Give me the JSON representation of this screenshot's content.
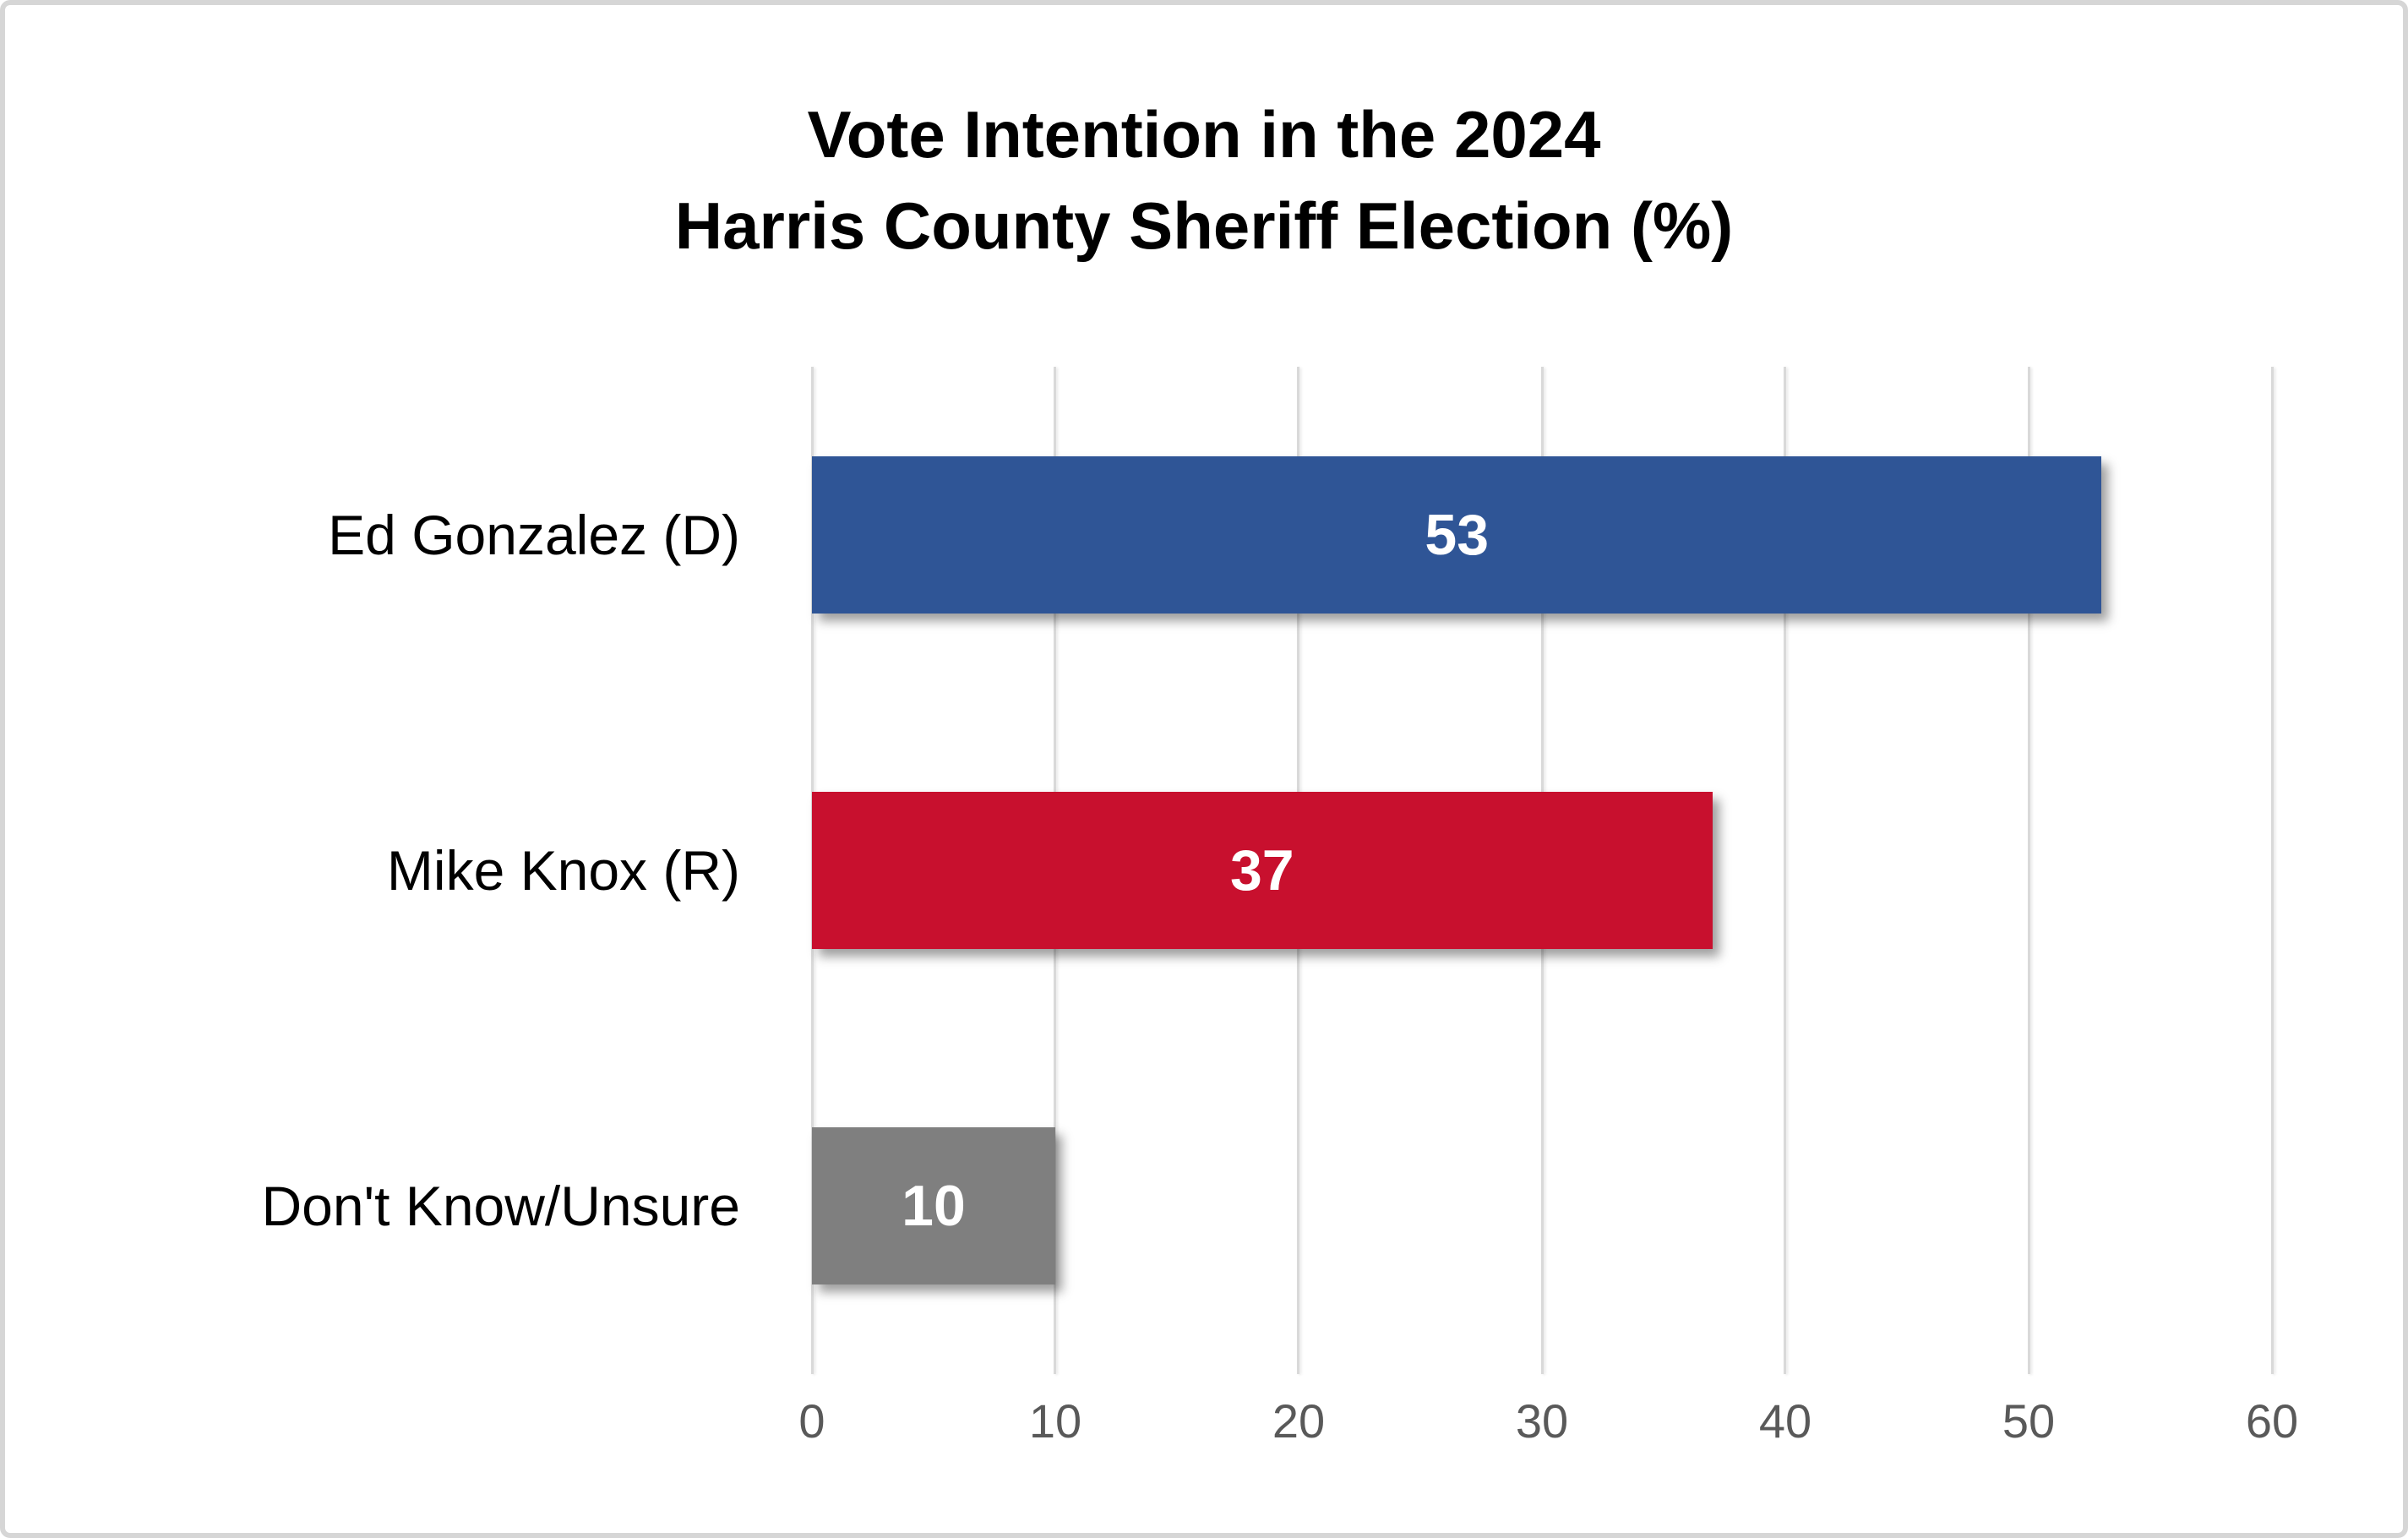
{
  "chart_data": {
    "type": "bar",
    "orientation": "horizontal",
    "title": "Vote Intention in the 2024 Harris County Sheriff Election (%)",
    "title_lines": [
      "Vote Intention in the 2024",
      "Harris County Sheriff Election (%)"
    ],
    "categories": [
      "Ed Gonzalez (D)",
      "Mike Knox (R)",
      "Don't Know/Unsure"
    ],
    "values": [
      53,
      37,
      10
    ],
    "bar_colors": [
      "#2F5596",
      "#C8102E",
      "#7F7F7F"
    ],
    "value_label_color": "#FFFFFF",
    "x_ticks": [
      "0",
      "10",
      "20",
      "30",
      "40",
      "50",
      "60"
    ],
    "xlim": [
      0,
      60
    ],
    "xlabel": "",
    "ylabel": "",
    "grid": true,
    "gridline_color": "#D9D9D9",
    "tick_label_color": "#595959",
    "background_color": "#FFFFFF",
    "legend": "none"
  }
}
